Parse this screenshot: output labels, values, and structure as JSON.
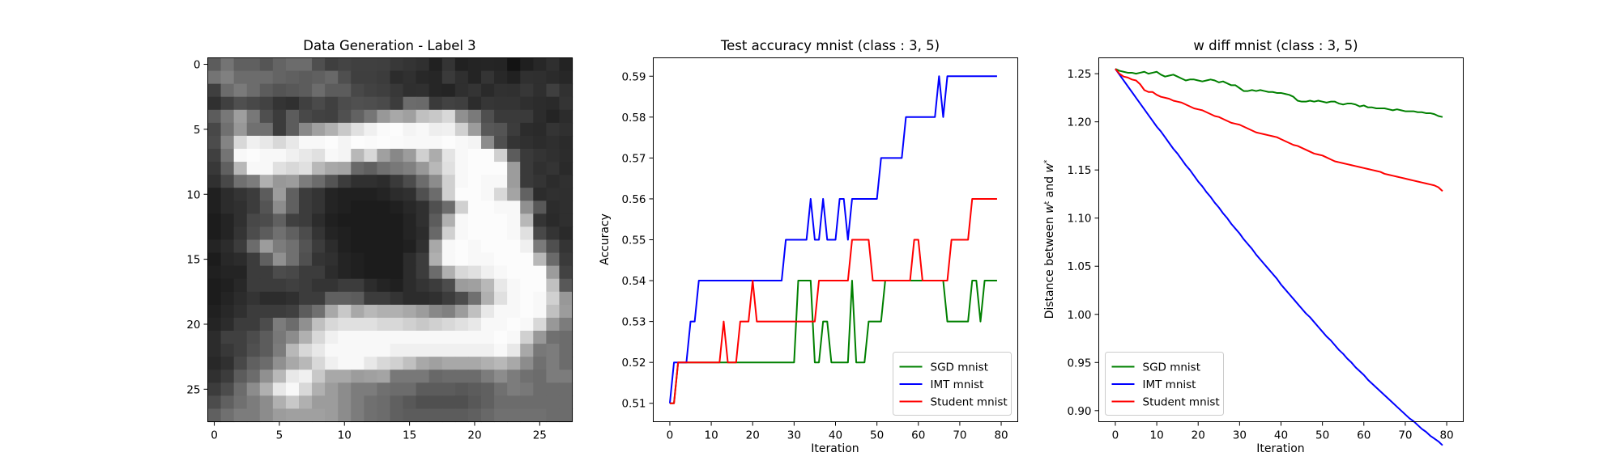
{
  "chart_data": [
    {
      "type": "heatmap",
      "title": "Data Generation - Label 3",
      "xlabel": "",
      "ylabel": "",
      "xticks": [
        0,
        5,
        10,
        15,
        20,
        25
      ],
      "yticks": [
        0,
        5,
        10,
        15,
        20,
        25
      ],
      "xlim": [
        -0.5,
        27.5
      ],
      "ylim": [
        27.5,
        -0.5
      ],
      "colormap": "gray",
      "grid": false,
      "pixels": [
        "5c74606055646c6c4f3f4440403f383430213421242524131f272f231f5c",
        "74806c6c6c64605c60684f3f3f3c2c3028263a2f24342821302f2b27244f",
        "3f6c7a6c5c54585c6c5c5c48423f382f3026242f342a3130372f3f313430",
        "30404f48423430404a404c504e4a3c6c6a3a423f2c3634342f2c2a342f34",
        "5c789e784f3c5c48424050627698a8a0c0c8d8907a4f3a3a3a2c242c2a30",
        "48709870703c5c88a0b0c8e0f0fafcf4f8eef0d09c58543c2c2a34302f2c",
        "4c84d8f0e8d8e8f8f8fcf4fcfafcfaf8f8f8fcf8f48c4f34302c2f2b2b34",
        "4074f8fcf8f8f0e8e0f8f4b8d8a0889cd0ace4f8fcfcd05c3a34302c2f34",
        "3860b8f8f8e0d8e0b8a8a4686070788098b8e0f8fcfcfc9c3a30342a2f2f",
        "3048707cb0989c7c6c543c30302c3a4c6c8cd0f8fcf8f89c3a342c302f34",
        "202c343c5c9c603c3424202020242c30506cd0fcfcf8d8a4622c302f2c30",
        "202c303c548c603c3424201c1c1c202830506cd0fcfcf8f890582c2f342f",
        "1c2430484c60403c2c201c1c1c1c1c24305cb0f8fcfcfcf8b8342a2f3434",
        "1c24344c5c70604c3424201c1c1c1c242c68d0f8fcfcfcf8e048342a2f2f",
        "242c3c6c9c7c70543c2c201c1c1c1c2030a8f8fcf8fcfcfcf07a4f342c2f",
        "1c282c3c60907050343024201c1c1c2c3caff8fcf8f8fcfcfcb86a3a2f2f",
        "2024243c3c4c483c3c2c24201c1c1c2c3c6cb0d8e0f0f8fcfcfc9c422f2f",
        "1c20283c3c3c403c34343c3c2c24202c343c4c9ca0b8e8f8fcfcc0583434",
        "1c242c342c2c303c3c60605c3c3c342c2c303c4c70b0e0f8fcf8d098583c",
        "2028303c3c3c405c70a8c8a8b8b0b0a89c88809cc0e8f8f8fcf8c09c4f3c",
        "242c3c3c4c7c6c90c0d8e0e0e0d8d8d0c8d0d8e0e8f8f8fcf8d8987c4c3f",
        "2c40404c5c788cb0d8f0f8f8f8f8f8f8f8f8f8f8f8f8fcf8d098706c4f48",
        "2c3840505c7cb8d8e8f8f8f8f8f8f0f0f0f0f0f0f0f0f8e8a8787c6c604f",
        "283048606c90a8b8d8f0f8f8e8d8d0c0a8a0a8a8a8b0b8a88c707c6c6c54",
        "303c5c6c90b8e8f0c8a8a89ca0a4787878686c6c6c7c8c7c706c7c7c6c5c",
        "3c4c6c8cb0e8f8d8b09c8c7c7c706c6c5c5c5c585c60707c786c6c6c6c5c",
        "4c60707c8cb0c8b09c9c8c7c706c60585050505058606c6c6c6c6c6c6c5c",
        "60707c7c8c9ca0a0a09c8c7c706c605c5c5c5c5c6068707070706c6c6c5c"
      ]
    },
    {
      "type": "line",
      "title": "Test accuracy mnist (class : 3, 5)",
      "xlabel": "Iteration",
      "ylabel": "Accuracy",
      "xlim": [
        -4,
        84
      ],
      "ylim": [
        0.5055,
        0.5945
      ],
      "xticks": [
        0,
        10,
        20,
        30,
        40,
        50,
        60,
        70,
        80
      ],
      "yticks": [
        0.51,
        0.52,
        0.53,
        0.54,
        0.55,
        0.56,
        0.57,
        0.58,
        0.59
      ],
      "tick_decimals": 2,
      "grid": false,
      "legend_position": "lower-right",
      "series": [
        {
          "name": "SGD mnist",
          "color": "#008000",
          "values": [
            0.51,
            0.51,
            0.52,
            0.52,
            0.52,
            0.52,
            0.52,
            0.52,
            0.52,
            0.52,
            0.52,
            0.52,
            0.52,
            0.52,
            0.52,
            0.52,
            0.52,
            0.52,
            0.52,
            0.52,
            0.52,
            0.52,
            0.52,
            0.52,
            0.52,
            0.52,
            0.52,
            0.52,
            0.52,
            0.52,
            0.52,
            0.54,
            0.54,
            0.54,
            0.54,
            0.52,
            0.52,
            0.53,
            0.53,
            0.52,
            0.52,
            0.52,
            0.52,
            0.52,
            0.54,
            0.52,
            0.52,
            0.52,
            0.53,
            0.53,
            0.53,
            0.53,
            0.54,
            0.54,
            0.54,
            0.54,
            0.54,
            0.54,
            0.54,
            0.54,
            0.54,
            0.54,
            0.54,
            0.54,
            0.54,
            0.54,
            0.54,
            0.53,
            0.53,
            0.53,
            0.53,
            0.53,
            0.53,
            0.54,
            0.54,
            0.53,
            0.54,
            0.54,
            0.54,
            0.54
          ]
        },
        {
          "name": "IMT mnist",
          "color": "#0000ff",
          "values": [
            0.51,
            0.52,
            0.52,
            0.52,
            0.52,
            0.53,
            0.53,
            0.54,
            0.54,
            0.54,
            0.54,
            0.54,
            0.54,
            0.54,
            0.54,
            0.54,
            0.54,
            0.54,
            0.54,
            0.54,
            0.54,
            0.54,
            0.54,
            0.54,
            0.54,
            0.54,
            0.54,
            0.54,
            0.55,
            0.55,
            0.55,
            0.55,
            0.55,
            0.55,
            0.56,
            0.55,
            0.55,
            0.56,
            0.55,
            0.55,
            0.55,
            0.56,
            0.56,
            0.55,
            0.56,
            0.56,
            0.56,
            0.56,
            0.56,
            0.56,
            0.56,
            0.57,
            0.57,
            0.57,
            0.57,
            0.57,
            0.57,
            0.58,
            0.58,
            0.58,
            0.58,
            0.58,
            0.58,
            0.58,
            0.58,
            0.59,
            0.58,
            0.59,
            0.59,
            0.59,
            0.59,
            0.59,
            0.59,
            0.59,
            0.59,
            0.59,
            0.59,
            0.59,
            0.59,
            0.59
          ]
        },
        {
          "name": "Student mnist",
          "color": "#ff0000",
          "values": [
            0.51,
            0.51,
            0.52,
            0.52,
            0.52,
            0.52,
            0.52,
            0.52,
            0.52,
            0.52,
            0.52,
            0.52,
            0.52,
            0.53,
            0.52,
            0.52,
            0.52,
            0.53,
            0.53,
            0.53,
            0.54,
            0.53,
            0.53,
            0.53,
            0.53,
            0.53,
            0.53,
            0.53,
            0.53,
            0.53,
            0.53,
            0.53,
            0.53,
            0.53,
            0.53,
            0.53,
            0.54,
            0.54,
            0.54,
            0.54,
            0.54,
            0.54,
            0.54,
            0.54,
            0.55,
            0.55,
            0.55,
            0.55,
            0.55,
            0.54,
            0.54,
            0.54,
            0.54,
            0.54,
            0.54,
            0.54,
            0.54,
            0.54,
            0.54,
            0.55,
            0.55,
            0.54,
            0.54,
            0.54,
            0.54,
            0.54,
            0.54,
            0.54,
            0.55,
            0.55,
            0.55,
            0.55,
            0.55,
            0.56,
            0.56,
            0.56,
            0.56,
            0.56,
            0.56,
            0.56
          ]
        }
      ]
    },
    {
      "type": "line",
      "title": "w diff mnist (class : 3, 5)",
      "xlabel": "Iteration",
      "ylabel_parts": [
        "Distance between ",
        "w",
        "t",
        " and ",
        "w",
        "*"
      ],
      "xlim": [
        -4,
        84
      ],
      "ylim": [
        0.8885,
        1.2665
      ],
      "xticks": [
        0,
        10,
        20,
        30,
        40,
        50,
        60,
        70,
        80
      ],
      "yticks": [
        0.9,
        0.95,
        1.0,
        1.05,
        1.1,
        1.15,
        1.2,
        1.25
      ],
      "tick_decimals": 2,
      "grid": false,
      "legend_position": "lower-left",
      "series": [
        {
          "name": "SGD mnist",
          "color": "#008000",
          "values": [
            1.255,
            1.253,
            1.252,
            1.251,
            1.251,
            1.25,
            1.251,
            1.252,
            1.25,
            1.251,
            1.252,
            1.249,
            1.247,
            1.248,
            1.249,
            1.247,
            1.245,
            1.243,
            1.244,
            1.244,
            1.243,
            1.242,
            1.243,
            1.244,
            1.243,
            1.241,
            1.242,
            1.24,
            1.238,
            1.238,
            1.235,
            1.232,
            1.232,
            1.233,
            1.232,
            1.233,
            1.232,
            1.231,
            1.231,
            1.23,
            1.23,
            1.229,
            1.228,
            1.226,
            1.222,
            1.221,
            1.221,
            1.222,
            1.221,
            1.222,
            1.221,
            1.22,
            1.221,
            1.221,
            1.219,
            1.218,
            1.219,
            1.219,
            1.218,
            1.216,
            1.217,
            1.215,
            1.215,
            1.214,
            1.214,
            1.214,
            1.213,
            1.212,
            1.213,
            1.212,
            1.211,
            1.211,
            1.211,
            1.21,
            1.21,
            1.209,
            1.209,
            1.208,
            1.206,
            1.205
          ]
        },
        {
          "name": "IMT mnist",
          "color": "#0000ff",
          "values": [
            1.255,
            1.249,
            1.243,
            1.237,
            1.231,
            1.225,
            1.219,
            1.213,
            1.207,
            1.201,
            1.195,
            1.19,
            1.184,
            1.178,
            1.172,
            1.167,
            1.161,
            1.155,
            1.15,
            1.144,
            1.138,
            1.133,
            1.127,
            1.122,
            1.116,
            1.111,
            1.105,
            1.1,
            1.094,
            1.089,
            1.084,
            1.078,
            1.073,
            1.068,
            1.062,
            1.057,
            1.052,
            1.047,
            1.042,
            1.037,
            1.031,
            1.026,
            1.021,
            1.016,
            1.011,
            1.006,
            1.001,
            0.997,
            0.992,
            0.987,
            0.982,
            0.977,
            0.973,
            0.968,
            0.963,
            0.959,
            0.954,
            0.95,
            0.945,
            0.941,
            0.937,
            0.932,
            0.928,
            0.924,
            0.92,
            0.916,
            0.912,
            0.908,
            0.904,
            0.9,
            0.896,
            0.892,
            0.889,
            0.885,
            0.881,
            0.878,
            0.874,
            0.871,
            0.868,
            0.864
          ]
        },
        {
          "name": "Student mnist",
          "color": "#ff0000",
          "values": [
            1.255,
            1.25,
            1.247,
            1.246,
            1.244,
            1.243,
            1.239,
            1.233,
            1.231,
            1.231,
            1.228,
            1.226,
            1.225,
            1.224,
            1.222,
            1.221,
            1.22,
            1.218,
            1.216,
            1.214,
            1.213,
            1.212,
            1.21,
            1.208,
            1.206,
            1.205,
            1.203,
            1.201,
            1.199,
            1.198,
            1.197,
            1.195,
            1.193,
            1.191,
            1.189,
            1.188,
            1.187,
            1.186,
            1.185,
            1.184,
            1.182,
            1.18,
            1.178,
            1.176,
            1.175,
            1.173,
            1.171,
            1.169,
            1.167,
            1.166,
            1.165,
            1.163,
            1.161,
            1.159,
            1.158,
            1.157,
            1.156,
            1.155,
            1.154,
            1.153,
            1.152,
            1.151,
            1.15,
            1.149,
            1.148,
            1.146,
            1.145,
            1.144,
            1.143,
            1.142,
            1.141,
            1.14,
            1.139,
            1.138,
            1.137,
            1.136,
            1.135,
            1.134,
            1.132,
            1.128
          ]
        }
      ]
    }
  ]
}
